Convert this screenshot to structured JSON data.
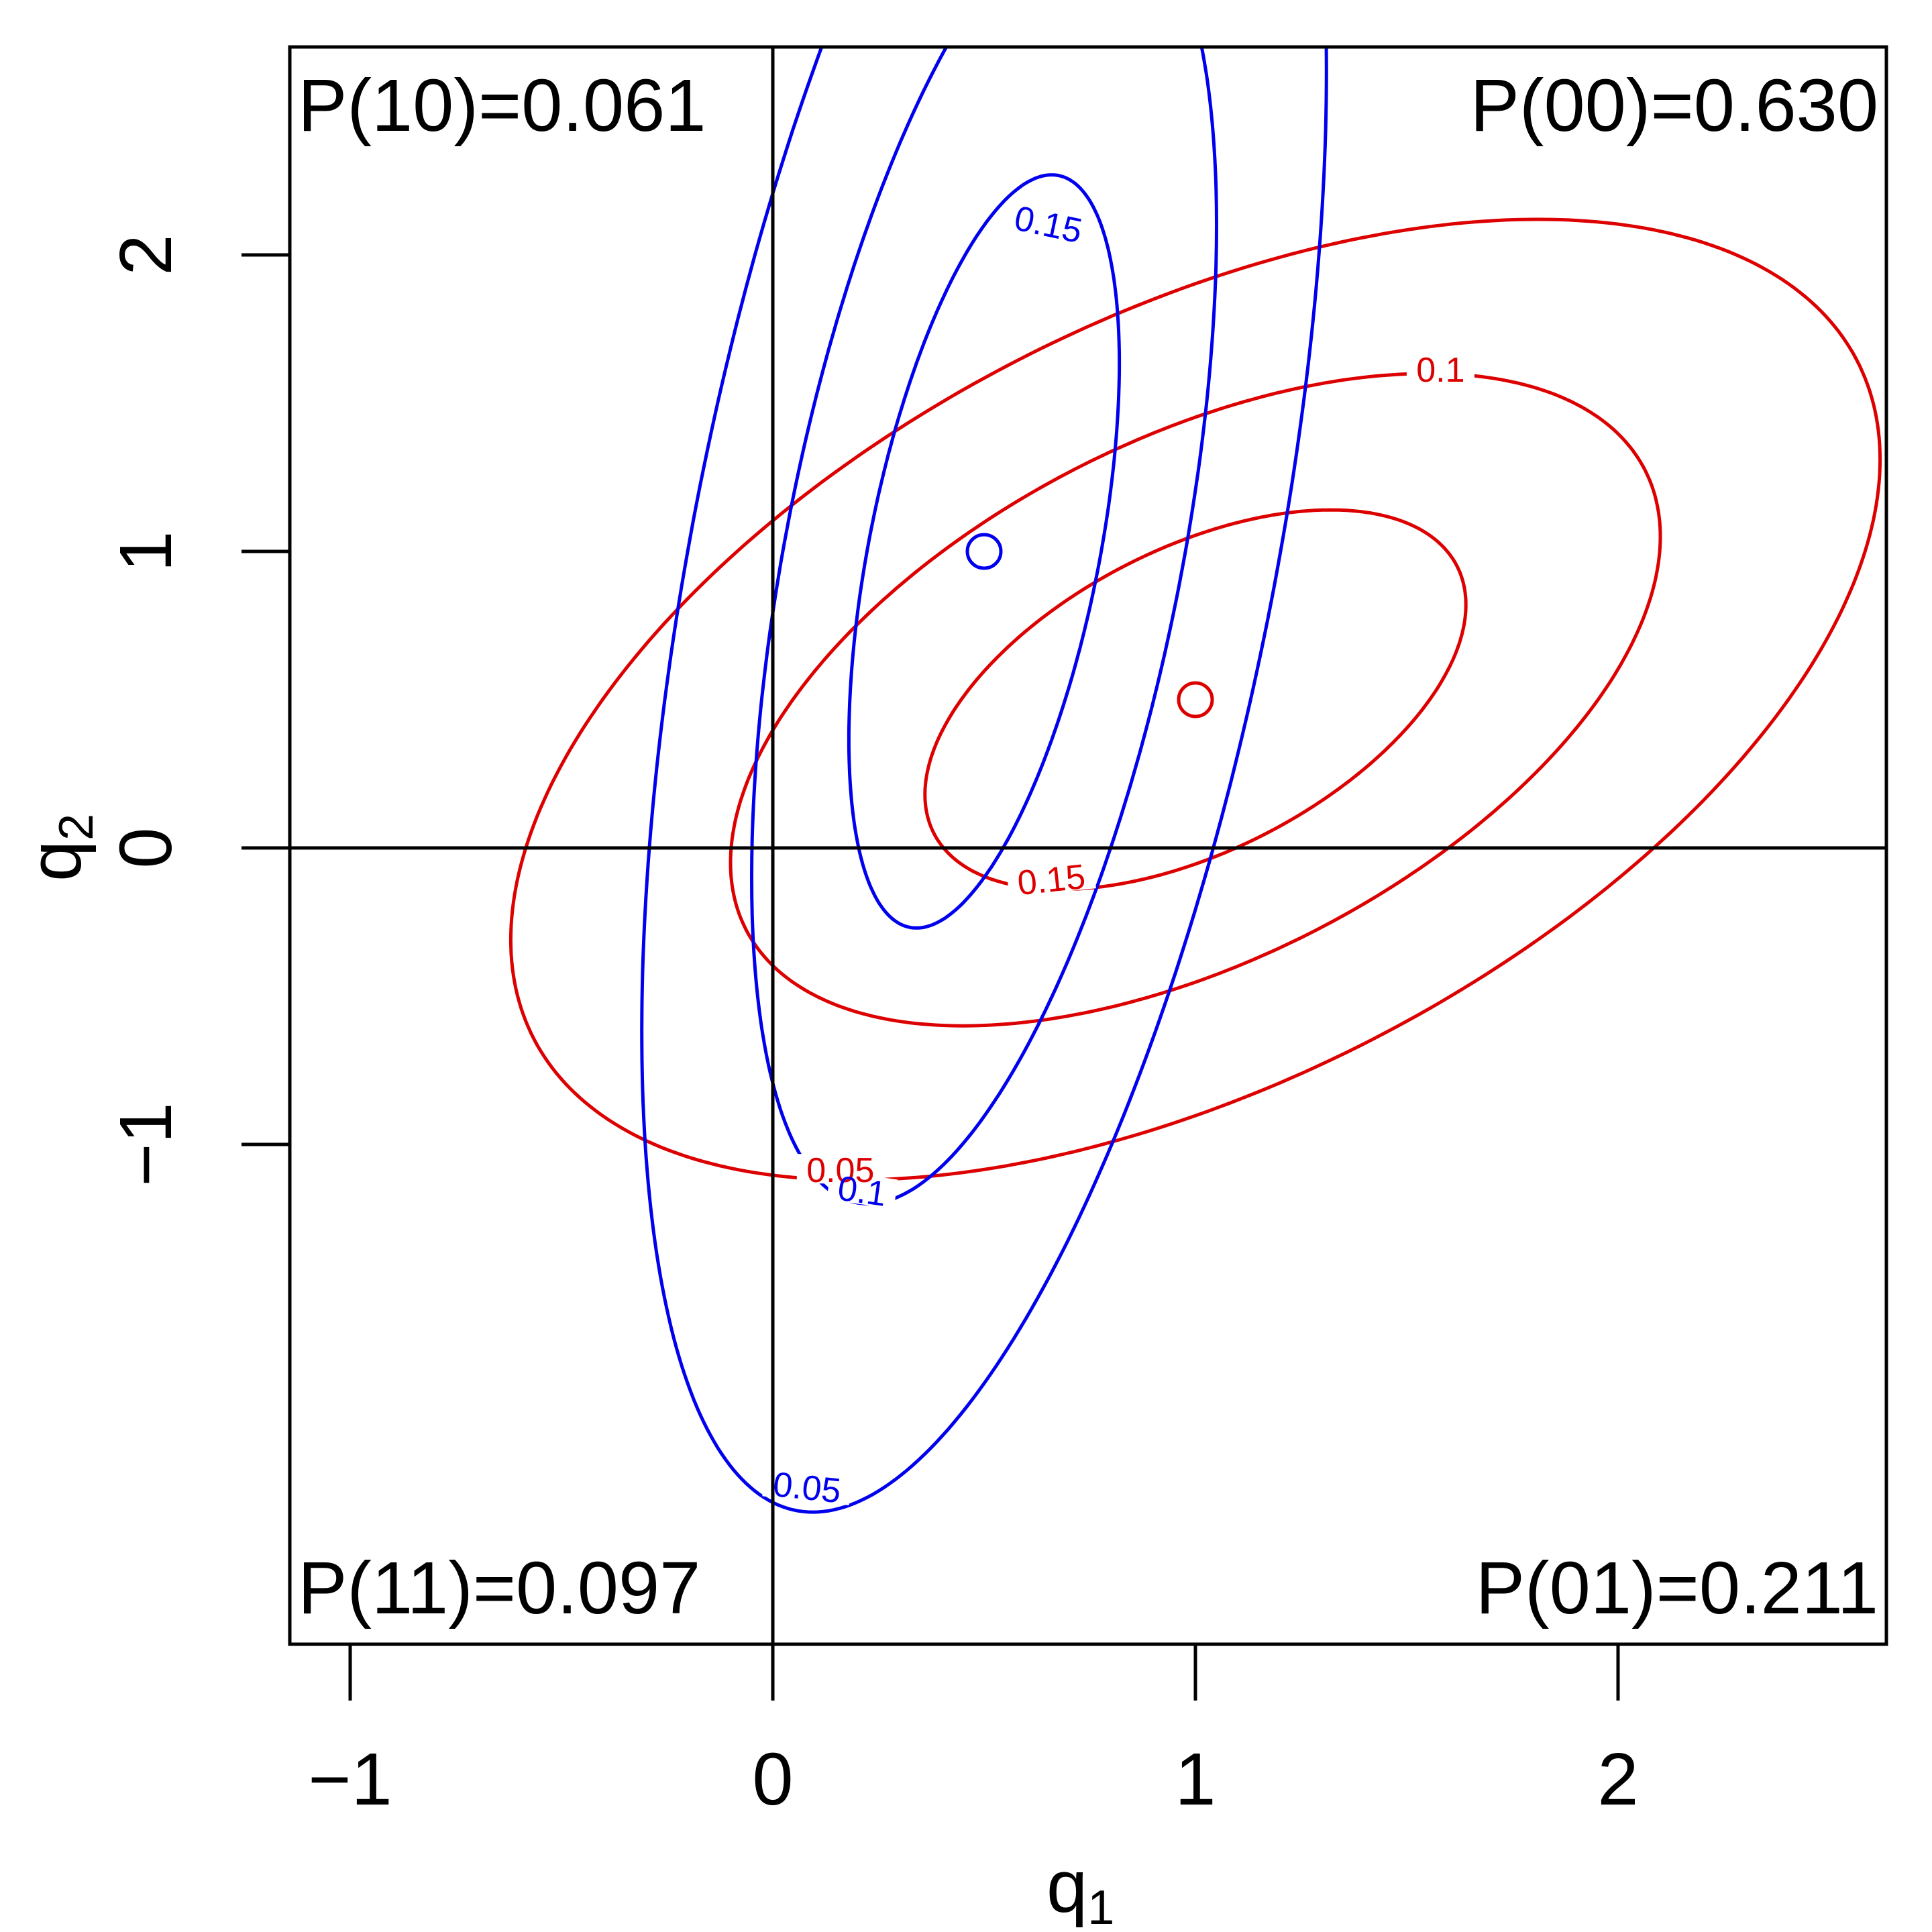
{
  "chart_data": {
    "type": "contour",
    "title": "",
    "xlabel": "q1",
    "ylabel": "q2",
    "xlim": [
      -1.15,
      2.635
    ],
    "ylim": [
      -2.69,
      2.7
    ],
    "x_ticks": [
      -1,
      0,
      1,
      2
    ],
    "y_ticks": [
      -1,
      0,
      1,
      2
    ],
    "reference_lines": {
      "x": 0,
      "y": 0
    },
    "corner_labels": {
      "top_left": "P(10)=0.061",
      "top_right": "P(00)=0.630",
      "bottom_left": "P(11)=0.097",
      "bottom_right": "P(01)=0.211"
    },
    "series": [
      {
        "name": "red",
        "color": "#dd0000",
        "center": [
          1.0,
          0.5
        ],
        "rho": 0.5,
        "levels": [
          {
            "value": "0.15",
            "hx": 0.64,
            "hy": 0.64,
            "label_at": [
              0.66,
              -0.12
            ],
            "label_rot": -6
          },
          {
            "value": "0.1",
            "hx": 1.1,
            "hy": 1.1,
            "label_at": [
              1.58,
              1.6
            ],
            "label_rot": 0
          },
          {
            "value": "0.05",
            "hx": 1.62,
            "hy": 1.62,
            "label_at": [
              0.16,
              -1.1
            ],
            "label_rot": 0
          }
        ]
      },
      {
        "name": "blue",
        "color": "#0000ee",
        "center": [
          0.5,
          1.0
        ],
        "rho": 0.5,
        "levels": [
          {
            "value": "0.15",
            "hx": 0.32,
            "hy": 1.27,
            "label_at": [
              0.65,
              2.09
            ],
            "label_rot": 12
          },
          {
            "value": "0.1",
            "hx": 0.55,
            "hy": 2.2,
            "label_at": [
              0.21,
              -1.17
            ],
            "label_rot": 8
          },
          {
            "value": "0.05",
            "hx": 0.81,
            "hy": 3.24,
            "label_at": [
              0.08,
              -2.17
            ],
            "label_rot": 6
          }
        ]
      }
    ],
    "points": [
      {
        "x": 0.5,
        "y": 1.0,
        "color": "#0000ee",
        "marker": "open-circle"
      },
      {
        "x": 1.0,
        "y": 0.5,
        "color": "#dd0000",
        "marker": "open-circle"
      }
    ]
  }
}
